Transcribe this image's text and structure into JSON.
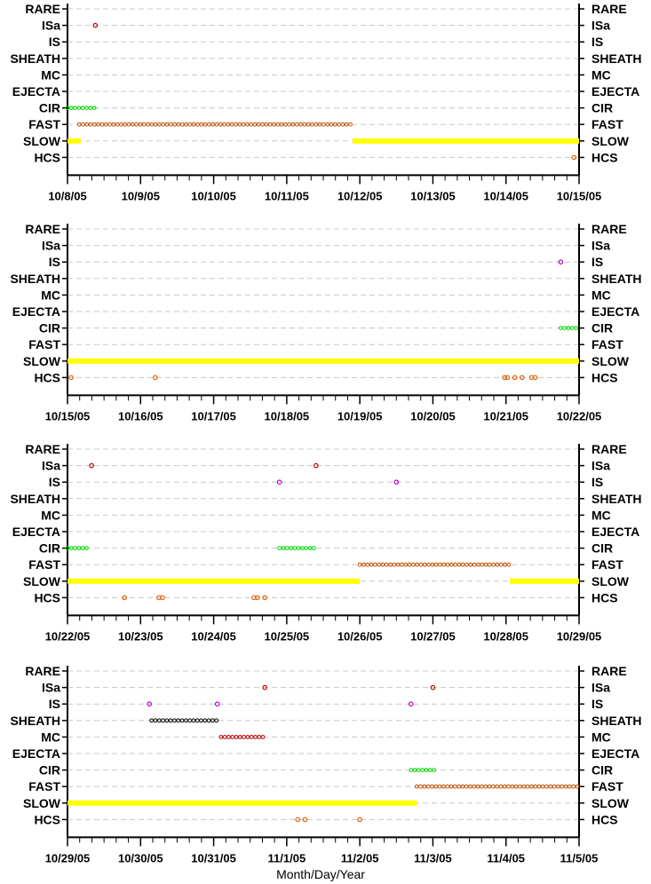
{
  "categories": [
    "RARE",
    "ISa",
    "IS",
    "SHEATH",
    "MC",
    "EJECTA",
    "CIR",
    "FAST",
    "SLOW",
    "HCS"
  ],
  "xlabel": "Month/Day/Year",
  "colors": {
    "ISa": "#c00000",
    "IS": "#c000c0",
    "SHEATH": "#000000",
    "MC": "#c00000",
    "CIR": "#00dd00",
    "FAST": "#c05000",
    "SLOW": "#ffff00",
    "HCS": "#e06000",
    "grid": "#c8c8c8"
  },
  "chart_data": [
    {
      "type": "scatter",
      "x_start": "10/8/05",
      "x_end": "10/15/05",
      "xticks": [
        "10/8/05",
        "10/9/05",
        "10/10/05",
        "10/11/05",
        "10/12/05",
        "10/13/05",
        "10/14/05",
        "10/15/05"
      ],
      "series": [
        {
          "category": "ISa",
          "points": [
            0.38
          ]
        },
        {
          "category": "CIR",
          "ranges": [
            [
              0.0,
              0.38
            ]
          ]
        },
        {
          "category": "FAST",
          "ranges": [
            [
              0.16,
              3.9
            ]
          ]
        },
        {
          "category": "SLOW",
          "ranges": [
            [
              0.0,
              0.18
            ],
            [
              3.9,
              7.0
            ]
          ]
        },
        {
          "category": "HCS",
          "points": [
            6.93
          ]
        }
      ]
    },
    {
      "type": "scatter",
      "x_start": "10/15/05",
      "x_end": "10/22/05",
      "xticks": [
        "10/15/05",
        "10/16/05",
        "10/17/05",
        "10/18/05",
        "10/19/05",
        "10/20/05",
        "10/21/05",
        "10/22/05"
      ],
      "series": [
        {
          "category": "IS",
          "points": [
            6.75
          ]
        },
        {
          "category": "CIR",
          "ranges": [
            [
              6.75,
              7.0
            ]
          ]
        },
        {
          "category": "SLOW",
          "ranges": [
            [
              0.0,
              7.0
            ]
          ]
        },
        {
          "category": "HCS",
          "points": [
            0.05,
            1.2,
            5.98,
            6.02,
            6.12,
            6.22,
            6.35,
            6.4
          ]
        }
      ]
    },
    {
      "type": "scatter",
      "x_start": "10/22/05",
      "x_end": "10/29/05",
      "xticks": [
        "10/22/05",
        "10/23/05",
        "10/24/05",
        "10/25/05",
        "10/26/05",
        "10/27/05",
        "10/28/05",
        "10/29/05"
      ],
      "series": [
        {
          "category": "ISa",
          "points": [
            0.33,
            3.4
          ]
        },
        {
          "category": "IS",
          "points": [
            2.9,
            4.5
          ]
        },
        {
          "category": "CIR",
          "ranges": [
            [
              0.0,
              0.3
            ],
            [
              2.9,
              3.4
            ]
          ]
        },
        {
          "category": "FAST",
          "ranges": [
            [
              4.0,
              6.05
            ]
          ]
        },
        {
          "category": "SLOW",
          "ranges": [
            [
              0.0,
              4.0
            ],
            [
              6.05,
              7.0
            ]
          ]
        },
        {
          "category": "HCS",
          "points": [
            0.78,
            1.25,
            1.3,
            2.55,
            2.6,
            2.7
          ]
        }
      ]
    },
    {
      "type": "scatter",
      "x_start": "10/29/05",
      "x_end": "11/5/05",
      "xticks": [
        "10/29/05",
        "10/30/05",
        "10/31/05",
        "11/1/05",
        "11/2/05",
        "11/3/05",
        "11/4/05",
        "11/5/05"
      ],
      "series": [
        {
          "category": "ISa",
          "points": [
            2.7,
            5.0
          ]
        },
        {
          "category": "IS",
          "points": [
            1.12,
            2.05,
            4.7
          ]
        },
        {
          "category": "SHEATH",
          "ranges": [
            [
              1.15,
              2.05
            ]
          ]
        },
        {
          "category": "MC",
          "ranges": [
            [
              2.1,
              2.7
            ]
          ]
        },
        {
          "category": "CIR",
          "ranges": [
            [
              4.7,
              5.05
            ]
          ]
        },
        {
          "category": "FAST",
          "ranges": [
            [
              4.78,
              7.0
            ]
          ]
        },
        {
          "category": "SLOW",
          "ranges": [
            [
              0.0,
              4.78
            ]
          ]
        },
        {
          "category": "HCS",
          "points": [
            3.15,
            3.25,
            4.0
          ]
        }
      ]
    }
  ]
}
